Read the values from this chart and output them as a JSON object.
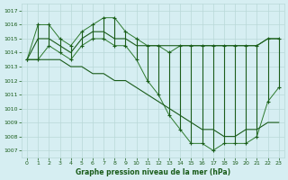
{
  "title": "Graphe pression niveau de la mer (hPa)",
  "bg_color": "#d6eef2",
  "grid_color": "#b8d8d8",
  "line_color_main": "#1a5c1a",
  "line_color_light": "#2d7a2d",
  "hours": [
    0,
    1,
    2,
    3,
    4,
    5,
    6,
    7,
    8,
    9,
    10,
    11,
    12,
    13,
    14,
    15,
    16,
    17,
    18,
    19,
    20,
    21,
    22,
    23
  ],
  "y_top": [
    1013.5,
    1016.0,
    1016.0,
    1015.0,
    1014.5,
    1015.5,
    1016.0,
    1016.5,
    1016.5,
    1015.5,
    1015.0,
    1014.5,
    1014.5,
    1014.0,
    1014.5,
    1014.5,
    1014.5,
    1014.5,
    1014.5,
    1014.5,
    1014.5,
    1014.5,
    1015.0,
    1015.0
  ],
  "y_bot": [
    1013.5,
    1013.5,
    1014.5,
    1014.0,
    1013.5,
    1014.5,
    1015.0,
    1015.0,
    1014.5,
    1014.5,
    1013.5,
    1012.0,
    1011.0,
    1009.5,
    1008.5,
    1007.5,
    1007.5,
    1007.0,
    1007.5,
    1007.5,
    1007.5,
    1008.0,
    1010.5,
    1011.5
  ],
  "y_flat": [
    1013.5,
    1015.0,
    1015.0,
    1014.5,
    1014.0,
    1015.0,
    1015.5,
    1015.5,
    1015.0,
    1015.0,
    1014.5,
    1014.5,
    1014.5,
    1014.5,
    1014.5,
    1014.5,
    1014.5,
    1014.5,
    1014.5,
    1014.5,
    1014.5,
    1014.5,
    1015.0,
    1015.0
  ],
  "y_trend": [
    1013.5,
    1013.5,
    1013.5,
    1013.5,
    1013.0,
    1013.0,
    1012.5,
    1012.5,
    1012.0,
    1012.0,
    1011.5,
    1011.0,
    1010.5,
    1010.0,
    1009.5,
    1009.0,
    1008.5,
    1008.5,
    1008.0,
    1008.0,
    1008.5,
    1008.5,
    1009.0,
    1009.0
  ],
  "ylim": [
    1006.5,
    1017.5
  ],
  "yticks": [
    1007,
    1008,
    1009,
    1010,
    1011,
    1012,
    1013,
    1014,
    1015,
    1016,
    1017
  ],
  "xlim": [
    -0.5,
    23.5
  ],
  "xticks": [
    0,
    1,
    2,
    3,
    4,
    5,
    6,
    7,
    8,
    9,
    10,
    11,
    12,
    13,
    14,
    15,
    16,
    17,
    18,
    19,
    20,
    21,
    22,
    23
  ]
}
